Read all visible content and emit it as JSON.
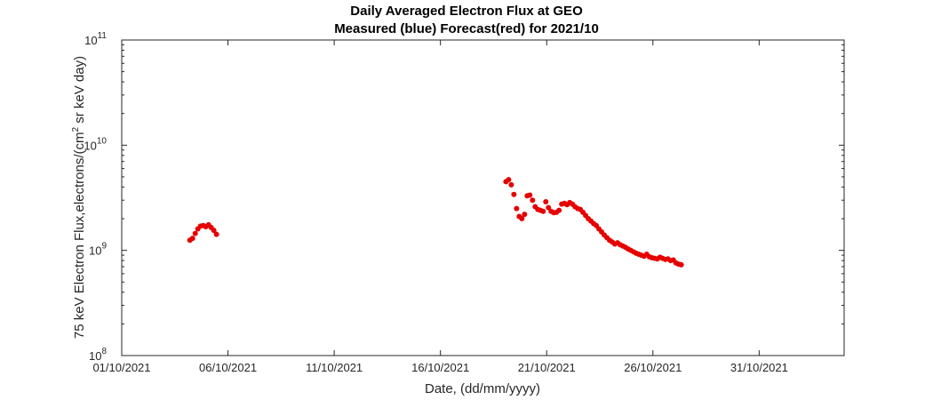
{
  "chart_data": {
    "type": "scatter",
    "title": "Daily Averaged Electron Flux at GEO",
    "subtitle": "Measured (blue) Forecast(red) for 2021/10",
    "xlabel": "Date, (dd/mm/yyyy)",
    "ylabel_main": "75 keV Electron Flux,electrons/(cm",
    "ylabel_sup": "2",
    "ylabel_tail": " sr keV day)",
    "xlim": [
      "2021-10-01",
      "2021-11-04"
    ],
    "ylim": [
      100000000.0,
      100000000000.0
    ],
    "yscale": "log",
    "grid": false,
    "legend": "none",
    "x_ticks": [
      "01/10/2021",
      "06/10/2021",
      "11/10/2021",
      "16/10/2021",
      "21/10/2021",
      "26/10/2021",
      "31/10/2021"
    ],
    "x_tick_dates": [
      "2021-10-01",
      "2021-10-06",
      "2021-10-11",
      "2021-10-16",
      "2021-10-21",
      "2021-10-26",
      "2021-10-31"
    ],
    "y_tick_base": "10",
    "y_tick_exponents": [
      "8",
      "9",
      "10",
      "11"
    ],
    "series": [
      {
        "color": "#e60000",
        "x": [
          "2021-10-04 05:00",
          "2021-10-04 08:00",
          "2021-10-04 11:00",
          "2021-10-04 14:00",
          "2021-10-04 17:00",
          "2021-10-04 20:00",
          "2021-10-04 23:00",
          "2021-10-05 02:00",
          "2021-10-05 05:00",
          "2021-10-05 08:00",
          "2021-10-05 11:00",
          "2021-10-19 02:00",
          "2021-10-19 05:00",
          "2021-10-19 08:00",
          "2021-10-19 11:00",
          "2021-10-19 14:00",
          "2021-10-19 17:00",
          "2021-10-19 20:00",
          "2021-10-19 23:00",
          "2021-10-20 02:00",
          "2021-10-20 05:00",
          "2021-10-20 08:00",
          "2021-10-20 11:00",
          "2021-10-20 14:00",
          "2021-10-20 17:00",
          "2021-10-20 20:00",
          "2021-10-20 23:00",
          "2021-10-21 02:00",
          "2021-10-21 05:00",
          "2021-10-21 08:00",
          "2021-10-21 11:00",
          "2021-10-21 14:00",
          "2021-10-21 17:00",
          "2021-10-21 20:00",
          "2021-10-21 23:00",
          "2021-10-22 02:00",
          "2021-10-22 05:00",
          "2021-10-22 08:00",
          "2021-10-22 11:00",
          "2021-10-22 14:00",
          "2021-10-22 17:00",
          "2021-10-22 20:00",
          "2021-10-22 23:00",
          "2021-10-23 02:00",
          "2021-10-23 05:00",
          "2021-10-23 08:00",
          "2021-10-23 11:00",
          "2021-10-23 14:00",
          "2021-10-23 17:00",
          "2021-10-23 20:00",
          "2021-10-23 23:00",
          "2021-10-24 02:00",
          "2021-10-24 05:00",
          "2021-10-24 08:00",
          "2021-10-24 11:00",
          "2021-10-24 14:00",
          "2021-10-24 17:00",
          "2021-10-24 20:00",
          "2021-10-24 23:00",
          "2021-10-25 02:00",
          "2021-10-25 05:00",
          "2021-10-25 08:00",
          "2021-10-25 11:00",
          "2021-10-25 14:00",
          "2021-10-25 17:00",
          "2021-10-25 20:00",
          "2021-10-25 23:00",
          "2021-10-26 02:00",
          "2021-10-26 05:00",
          "2021-10-26 08:00",
          "2021-10-26 11:00",
          "2021-10-26 14:00",
          "2021-10-26 17:00",
          "2021-10-26 20:00",
          "2021-10-26 23:00",
          "2021-10-27 02:00",
          "2021-10-27 05:00",
          "2021-10-27 08:00"
        ],
        "y": [
          1250000000.0,
          1300000000.0,
          1450000000.0,
          1600000000.0,
          1700000000.0,
          1720000000.0,
          1680000000.0,
          1750000000.0,
          1650000000.0,
          1550000000.0,
          1420000000.0,
          4500000000.0,
          4700000000.0,
          4200000000.0,
          3400000000.0,
          2500000000.0,
          2100000000.0,
          2000000000.0,
          2200000000.0,
          3300000000.0,
          3350000000.0,
          3000000000.0,
          2600000000.0,
          2450000000.0,
          2400000000.0,
          2350000000.0,
          2900000000.0,
          2550000000.0,
          2350000000.0,
          2280000000.0,
          2300000000.0,
          2400000000.0,
          2750000000.0,
          2800000000.0,
          2720000000.0,
          2850000000.0,
          2750000000.0,
          2600000000.0,
          2500000000.0,
          2450000000.0,
          2300000000.0,
          2150000000.0,
          2000000000.0,
          1900000000.0,
          1800000000.0,
          1720000000.0,
          1600000000.0,
          1500000000.0,
          1400000000.0,
          1320000000.0,
          1250000000.0,
          1200000000.0,
          1150000000.0,
          1180000000.0,
          1130000000.0,
          1100000000.0,
          1070000000.0,
          1030000000.0,
          1000000000.0,
          970000000.0,
          940000000.0,
          920000000.0,
          900000000.0,
          880000000.0,
          920000000.0,
          870000000.0,
          850000000.0,
          840000000.0,
          830000000.0,
          860000000.0,
          840000000.0,
          820000000.0,
          830000000.0,
          800000000.0,
          810000000.0,
          760000000.0,
          740000000.0,
          730000000.0
        ]
      }
    ]
  }
}
